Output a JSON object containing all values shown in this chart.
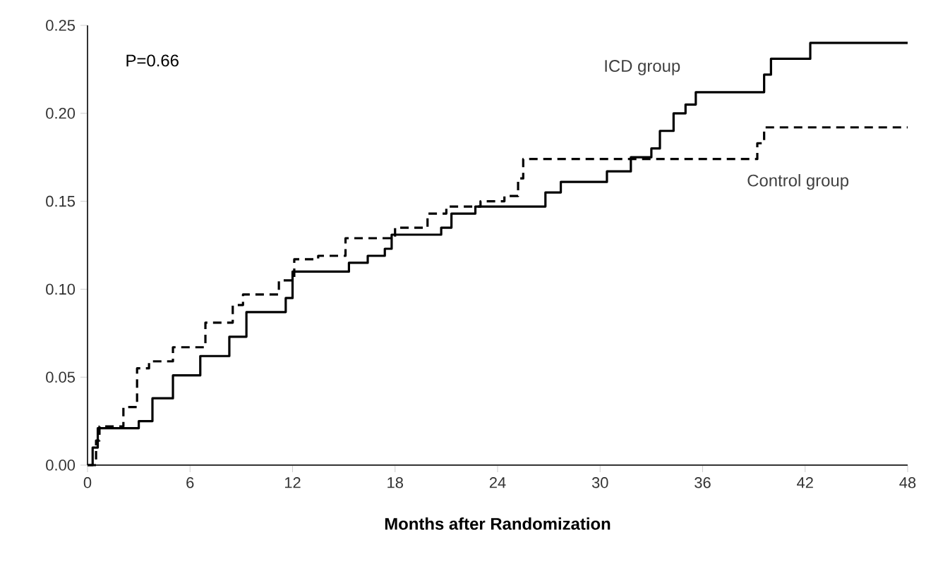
{
  "chart_data": {
    "type": "step",
    "xlabel": "**Months after Randomization**",
    "annotations": [
      "P=0.66"
    ],
    "xlim": [
      0,
      48
    ],
    "ylim": [
      0,
      0.25
    ],
    "xticks": [
      0,
      6,
      12,
      18,
      24,
      30,
      36,
      42,
      48
    ],
    "yticks": [
      {
        "value": 0,
        "label": "0.00"
      },
      {
        "value": 0.05,
        "label": "0.05"
      },
      {
        "value": 0.1,
        "label": "0.10"
      },
      {
        "value": 0.15,
        "label": "0.15"
      },
      {
        "value": 0.2,
        "label": "0.20"
      },
      {
        "value": 0.25,
        "label": "0.25"
      }
    ],
    "series": [
      {
        "name": "ICD group",
        "color": "#000000",
        "line_style": "solid",
        "x": [
          0,
          0.3,
          0.6,
          3,
          3.8,
          5,
          6.6,
          8.3,
          9.3,
          11.6,
          12,
          15.3,
          16.4,
          17.4,
          17.8,
          20.7,
          21.3,
          22.7,
          26.8,
          27.7,
          30.4,
          31.8,
          33,
          33.5,
          34.3,
          35,
          35.6,
          39.6,
          40,
          42.3,
          48
        ],
        "values": [
          0,
          0.01,
          0.021,
          0.025,
          0.038,
          0.051,
          0.062,
          0.073,
          0.087,
          0.095,
          0.11,
          0.115,
          0.119,
          0.123,
          0.131,
          0.135,
          0.143,
          0.147,
          0.155,
          0.161,
          0.167,
          0.175,
          0.18,
          0.19,
          0.2,
          0.205,
          0.212,
          0.222,
          0.231,
          0.24,
          0.24
        ]
      },
      {
        "name": "Control group",
        "color": "#000000",
        "line_style": "dashed",
        "x": [
          0,
          0.5,
          0.7,
          2.1,
          2.9,
          3.6,
          5,
          6.9,
          8.5,
          9.1,
          11.2,
          12.1,
          13.5,
          15.1,
          18,
          19.9,
          21,
          23,
          24.4,
          25.2,
          25.5,
          39.2,
          39.6,
          48
        ],
        "values": [
          0,
          0.014,
          0.022,
          0.033,
          0.055,
          0.059,
          0.067,
          0.081,
          0.091,
          0.097,
          0.105,
          0.117,
          0.119,
          0.129,
          0.135,
          0.143,
          0.147,
          0.15,
          0.153,
          0.163,
          0.174,
          0.183,
          0.192,
          0.192
        ]
      }
    ]
  }
}
